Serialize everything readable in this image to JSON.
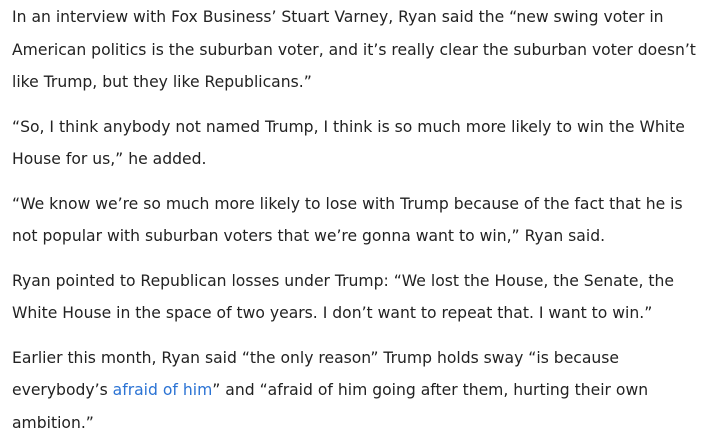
{
  "paragraphs": [
    {
      "lines": [
        "In an interview with Fox Business’ Stuart Varney, Ryan said the “new swing voter in",
        "American politics is the suburban voter, and it’s really clear the suburban voter doesn’t",
        "like Trump, but they like Republicans.”"
      ]
    },
    {
      "lines": [
        "“So, I think anybody not named Trump, I think is so much more likely to win the White",
        "House for us,” he added."
      ]
    },
    {
      "lines": [
        "“We know we’re so much more likely to lose with Trump because of the fact that he is",
        "not popular with suburban voters that we’re gonna want to win,” Ryan said."
      ]
    },
    {
      "lines": [
        "Ryan pointed to Republican losses under Trump: “We lost the House, the Senate, the",
        "White House in the space of two years. I don’t want to repeat that. I want to win.”"
      ]
    },
    {
      "lines": [
        "Earlier this month, Ryan said “the only reason” Trump holds sway “is because"
      ],
      "link_line": {
        "before": "everybody’s ",
        "link": "afraid of him",
        "after": "” and “afraid of him going after them, hurting their own"
      },
      "last_line": "ambition.”"
    }
  ]
}
